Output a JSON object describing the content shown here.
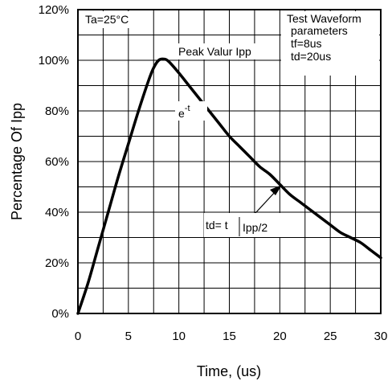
{
  "chart_data": {
    "type": "line",
    "title": "",
    "xlabel": "Time, (us)",
    "ylabel": "Percentage Of Ipp",
    "xlim": [
      0,
      30
    ],
    "ylim": [
      0,
      120
    ],
    "x_ticks": [
      "0",
      "5",
      "10",
      "15",
      "20",
      "25",
      "30"
    ],
    "y_ticks": [
      "0%",
      "20%",
      "40%",
      "60%",
      "80%",
      "100%",
      "120%"
    ],
    "grid": true,
    "series": [
      {
        "x": [
          0,
          1,
          2,
          3,
          4,
          5,
          6,
          7,
          7.5,
          8,
          8.5,
          9,
          10,
          11,
          12,
          13,
          14,
          15,
          16,
          17,
          18,
          19,
          20,
          21,
          22,
          23,
          24,
          25,
          26,
          27,
          28,
          29,
          30
        ],
        "values": [
          0,
          12,
          26,
          40,
          54,
          67,
          80,
          92,
          97,
          100,
          100.5,
          99.5,
          95,
          90,
          85,
          80,
          75,
          70,
          66,
          62,
          58,
          55,
          51,
          47,
          44,
          41,
          38,
          35,
          32,
          30,
          28,
          25,
          22
        ]
      }
    ],
    "annotations": {
      "condition": "Ta=25°C",
      "peak": "Peak Valur Ipp",
      "exp_base": "e",
      "exp_power": "-t",
      "td_prefix": "td= t",
      "td_subscript": "Ipp/2",
      "params_title": "Test Waveform",
      "params_sub": "parameters",
      "tf": "tf=8us",
      "td": "td=20us"
    }
  }
}
